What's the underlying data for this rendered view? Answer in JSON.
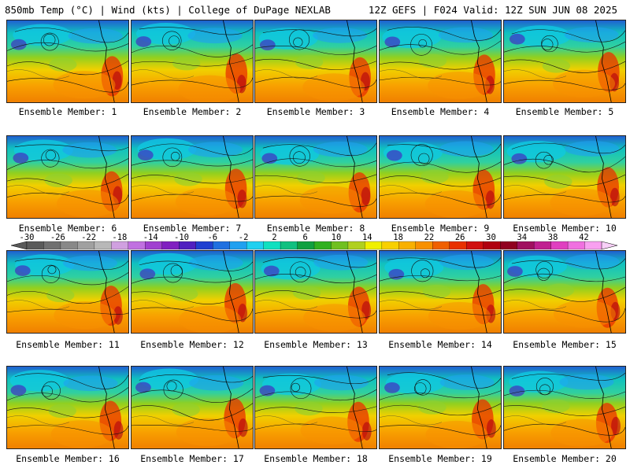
{
  "header": {
    "title_left": "850mb Temp (°C) | Wind (kts) | College of DuPage NEXLAB",
    "title_right": "12Z GEFS | F024 Valid: 12Z SUN JUN 08 2025"
  },
  "members": [
    {
      "label": "Ensemble Member: 1"
    },
    {
      "label": "Ensemble Member: 2"
    },
    {
      "label": "Ensemble Member: 3"
    },
    {
      "label": "Ensemble Member: 4"
    },
    {
      "label": "Ensemble Member: 5"
    },
    {
      "label": "Ensemble Member: 6"
    },
    {
      "label": "Ensemble Member: 7"
    },
    {
      "label": "Ensemble Member: 8"
    },
    {
      "label": "Ensemble Member: 9"
    },
    {
      "label": "Ensemble Member: 10"
    },
    {
      "label": "Ensemble Member: 11"
    },
    {
      "label": "Ensemble Member: 12"
    },
    {
      "label": "Ensemble Member: 13"
    },
    {
      "label": "Ensemble Member: 14"
    },
    {
      "label": "Ensemble Member: 15"
    },
    {
      "label": "Ensemble Member: 16"
    },
    {
      "label": "Ensemble Member: 17"
    },
    {
      "label": "Ensemble Member: 18"
    },
    {
      "label": "Ensemble Member: 19"
    },
    {
      "label": "Ensemble Member: 20"
    }
  ],
  "colorbar": {
    "tick_labels": [
      "-30",
      "-26",
      "-22",
      "-18",
      "-14",
      "-10",
      "-6",
      "-2",
      "2",
      "6",
      "10",
      "14",
      "18",
      "22",
      "26",
      "30",
      "34",
      "38",
      "42"
    ],
    "colors": [
      "#5a5a5a",
      "#707070",
      "#888888",
      "#a0a0a0",
      "#b8b8b8",
      "#d0a0e0",
      "#c070e0",
      "#a040d0",
      "#8020c0",
      "#5020c0",
      "#2040d0",
      "#2070e0",
      "#20a0f0",
      "#20d0f0",
      "#10e0c0",
      "#10c080",
      "#10a040",
      "#30b020",
      "#70c020",
      "#b0d020",
      "#f0f000",
      "#f8d000",
      "#f8b000",
      "#f89000",
      "#f06000",
      "#e83000",
      "#d01010",
      "#b00010",
      "#900020",
      "#a01060",
      "#c02090",
      "#e040c0",
      "#f070e0",
      "#f8a0f0"
    ]
  }
}
